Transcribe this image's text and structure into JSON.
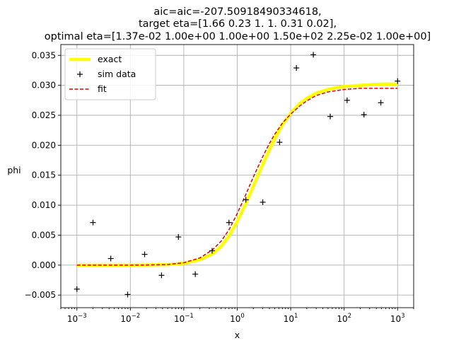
{
  "chart_data": {
    "type": "line",
    "title_lines": [
      "aic=aic=-207.50918490334618,",
      "target eta=[1.66 0.23 1.   1.   0.31 0.02],",
      "optimal eta=[1.37e-02 1.00e+00 1.00e+00 1.50e+02 2.25e-02 1.00e+00]"
    ],
    "xlabel": "x",
    "ylabel": "phi",
    "xscale": "log",
    "xlim": [
      0.0005,
      2000
    ],
    "ylim": [
      -0.0071,
      0.0368
    ],
    "x_ticks": [
      {
        "value": 0.001,
        "base": "10",
        "exp": "−3"
      },
      {
        "value": 0.01,
        "base": "10",
        "exp": "−2"
      },
      {
        "value": 0.1,
        "base": "10",
        "exp": "−1"
      },
      {
        "value": 1,
        "base": "10",
        "exp": "0"
      },
      {
        "value": 10,
        "base": "10",
        "exp": "1"
      },
      {
        "value": 100,
        "base": "10",
        "exp": "2"
      },
      {
        "value": 1000,
        "base": "10",
        "exp": "3"
      }
    ],
    "y_ticks": [
      {
        "value": -0.005,
        "label": "−0.005"
      },
      {
        "value": 0,
        "label": "0.000"
      },
      {
        "value": 0.005,
        "label": "0.005"
      },
      {
        "value": 0.01,
        "label": "0.010"
      },
      {
        "value": 0.015,
        "label": "0.015"
      },
      {
        "value": 0.02,
        "label": "0.020"
      },
      {
        "value": 0.025,
        "label": "0.025"
      },
      {
        "value": 0.03,
        "label": "0.030"
      },
      {
        "value": 0.035,
        "label": "0.035"
      }
    ],
    "grid": true,
    "legend_position": "top-left",
    "series": [
      {
        "name": "exact",
        "kind": "line",
        "color": "#ffff00",
        "x": [
          0.001,
          0.002,
          0.005,
          0.01,
          0.02,
          0.05,
          0.1,
          0.2,
          0.35,
          0.5,
          0.7,
          1,
          1.5,
          2,
          3,
          4,
          5,
          7,
          10,
          15,
          20,
          30,
          50,
          70,
          100,
          200,
          300,
          500,
          1000
        ],
        "y": [
          0.0,
          0.0,
          0.0,
          0.0,
          2e-05,
          8e-05,
          0.0003,
          0.0009,
          0.0019,
          0.0031,
          0.0048,
          0.0072,
          0.0105,
          0.0131,
          0.0167,
          0.0192,
          0.021,
          0.0234,
          0.0253,
          0.027,
          0.0278,
          0.0287,
          0.0293,
          0.0296,
          0.0298,
          0.03,
          0.0301,
          0.0302,
          0.0302
        ]
      },
      {
        "name": "sim data",
        "kind": "marker",
        "color": "#000000",
        "x": [
          0.001,
          0.002,
          0.0043,
          0.0089,
          0.0185,
          0.0383,
          0.0793,
          0.164,
          0.339,
          0.701,
          1.45,
          3.0,
          6.2,
          12.8,
          26.5,
          54.9,
          113.6,
          235,
          486,
          1000
        ],
        "y": [
          -0.004,
          0.0071,
          0.0011,
          -0.0049,
          0.0018,
          -0.0017,
          0.0047,
          -0.0015,
          0.0024,
          0.0071,
          0.0109,
          0.0105,
          0.0205,
          0.0329,
          0.0351,
          0.0248,
          0.0275,
          0.0251,
          0.0271,
          0.0307
        ]
      },
      {
        "name": "fit",
        "kind": "dashed",
        "color": "#dd0000",
        "x": [
          0.001,
          0.002,
          0.005,
          0.01,
          0.02,
          0.05,
          0.1,
          0.2,
          0.35,
          0.5,
          0.7,
          1,
          1.5,
          2,
          3,
          4,
          5,
          7,
          10,
          15,
          20,
          30,
          50,
          70,
          100,
          200,
          300,
          500,
          1000
        ],
        "y": [
          0.0,
          0.0,
          0.0,
          0.0,
          2e-05,
          0.0001,
          0.0004,
          0.0012,
          0.0026,
          0.004,
          0.0059,
          0.0086,
          0.0121,
          0.0147,
          0.0181,
          0.0203,
          0.0218,
          0.0237,
          0.0252,
          0.0266,
          0.0274,
          0.0283,
          0.0289,
          0.0291,
          0.0293,
          0.0295,
          0.0295,
          0.0295,
          0.0295
        ]
      }
    ]
  }
}
